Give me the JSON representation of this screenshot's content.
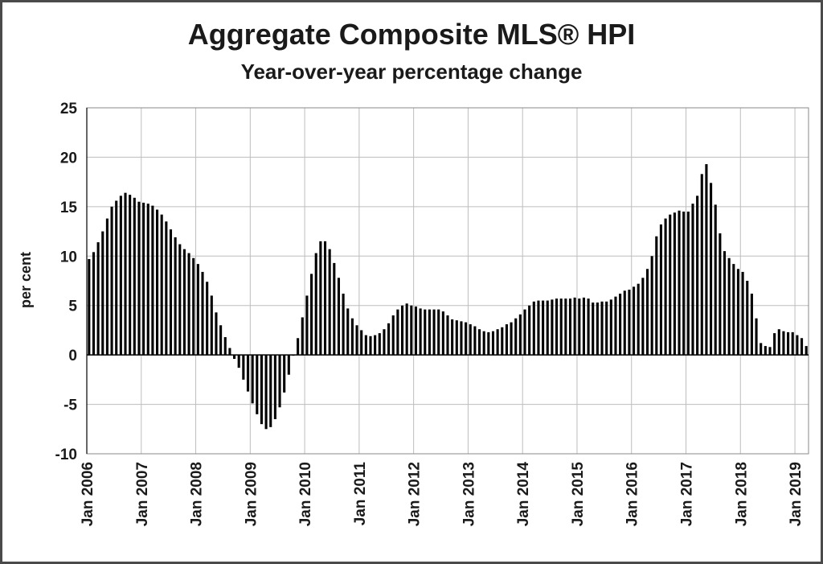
{
  "chart_data": {
    "type": "bar",
    "title": "Aggregate Composite MLS® HPI",
    "subtitle": "Year-over-year percentage change",
    "xlabel": "",
    "ylabel": "per cent",
    "ylim": [
      -10,
      25
    ],
    "yticks": [
      "25",
      "20",
      "15",
      "10",
      "5",
      "0",
      "-5",
      "-10"
    ],
    "grid": true,
    "x_tick_labels": [
      "Jan 2006",
      "Jan 2007",
      "Jan 2008",
      "Jan 2009",
      "Jan 2010",
      "Jan 2011",
      "Jan 2012",
      "Jan 2013",
      "Jan 2014",
      "Jan 2015",
      "Jan 2016",
      "Jan 2017",
      "Jan 2018",
      "Jan 2019"
    ],
    "start": "2006-01",
    "frequency": "monthly",
    "values": [
      9.7,
      10.4,
      11.4,
      12.5,
      13.8,
      15.0,
      15.6,
      16.1,
      16.4,
      16.2,
      15.9,
      15.5,
      15.4,
      15.3,
      15.1,
      14.7,
      14.2,
      13.5,
      12.7,
      11.9,
      11.2,
      10.7,
      10.3,
      9.8,
      9.2,
      8.4,
      7.4,
      6.0,
      4.3,
      3.0,
      1.8,
      0.7,
      -0.4,
      -1.3,
      -2.5,
      -3.7,
      -4.9,
      -6.0,
      -7.0,
      -7.5,
      -7.3,
      -6.5,
      -5.3,
      -3.8,
      -2.0,
      0.0,
      1.7,
      3.8,
      6.0,
      8.2,
      10.3,
      11.5,
      11.5,
      10.7,
      9.3,
      7.8,
      6.2,
      4.7,
      3.7,
      3.0,
      2.5,
      2.0,
      1.9,
      2.0,
      2.2,
      2.6,
      3.2,
      4.0,
      4.6,
      5.0,
      5.2,
      5.0,
      4.9,
      4.7,
      4.6,
      4.6,
      4.6,
      4.6,
      4.4,
      4.0,
      3.6,
      3.5,
      3.4,
      3.3,
      3.1,
      2.9,
      2.6,
      2.4,
      2.3,
      2.4,
      2.6,
      2.8,
      3.1,
      3.3,
      3.7,
      4.1,
      4.6,
      5.0,
      5.4,
      5.5,
      5.5,
      5.5,
      5.6,
      5.7,
      5.7,
      5.7,
      5.7,
      5.8,
      5.7,
      5.8,
      5.7,
      5.3,
      5.3,
      5.4,
      5.4,
      5.6,
      5.9,
      6.2,
      6.5,
      6.6,
      6.9,
      7.2,
      7.8,
      8.7,
      10.0,
      12.0,
      13.2,
      13.8,
      14.2,
      14.4,
      14.6,
      14.5,
      14.5,
      15.3,
      16.1,
      18.3,
      19.3,
      17.4,
      15.2,
      12.3,
      10.5,
      9.8,
      9.2,
      8.7,
      8.4,
      7.5,
      6.2,
      3.7,
      1.2,
      0.9,
      0.8,
      2.2,
      2.6,
      2.4,
      2.3,
      2.3,
      2.0,
      1.7,
      0.9
    ]
  }
}
